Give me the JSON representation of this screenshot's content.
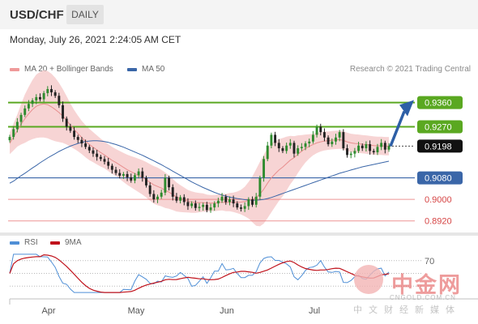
{
  "header": {
    "symbol": "USD/CHF",
    "timeframe": "DAILY"
  },
  "datetime": "Monday, July 26, 2021 2:24:05 AM CET",
  "legend": {
    "ma20": "MA 20 + Bollinger Bands",
    "ma50": "MA 50"
  },
  "copyright": "Research © 2021 Trading Central",
  "rsi_legend": {
    "rsi": "RSI",
    "ma9": "9MA"
  },
  "watermark": {
    "cn": "中金网",
    "url": "CNGOLD.COM.CN",
    "sub": "中文财经新媒体"
  },
  "colors": {
    "up": "#2e8b2e",
    "down": "#222222",
    "bollinger": "#f4c6c6",
    "ma20": "#e88f8f",
    "ma50": "#3a66a8",
    "resistance": "#5aa821",
    "support": "#3a66a8",
    "target": "#e97a7a",
    "rsi": "#4f8fd6",
    "rsi_ma": "#c0121b"
  },
  "chart_data": {
    "type": "candlestick",
    "xticks": [
      "Apr",
      "May",
      "Jun",
      "Jul"
    ],
    "ylim": [
      0.888,
      0.944
    ],
    "levels": [
      {
        "value": 0.936,
        "label": "0.9360",
        "kind": "resistance"
      },
      {
        "value": 0.927,
        "label": "0.9270",
        "kind": "resistance"
      },
      {
        "value": 0.9198,
        "label": "0.9198",
        "kind": "current"
      },
      {
        "value": 0.908,
        "label": "0.9080",
        "kind": "support"
      },
      {
        "value": 0.9,
        "label": "0.9000",
        "kind": "target"
      },
      {
        "value": 0.892,
        "label": "0.8920",
        "kind": "target"
      }
    ],
    "close": [
      0.9232,
      0.9261,
      0.9288,
      0.9314,
      0.9338,
      0.9355,
      0.9368,
      0.938,
      0.9372,
      0.9395,
      0.941,
      0.9398,
      0.9385,
      0.935,
      0.93,
      0.927,
      0.9255,
      0.9232,
      0.9221,
      0.9208,
      0.9195,
      0.9182,
      0.917,
      0.9158,
      0.915,
      0.914,
      0.9125,
      0.911,
      0.9098,
      0.9088,
      0.9094,
      0.9082,
      0.907,
      0.909,
      0.9104,
      0.908,
      0.9052,
      0.902,
      0.9,
      0.901,
      0.9025,
      0.908,
      0.9045,
      0.901,
      0.8995,
      0.9008,
      0.899,
      0.8975,
      0.8985,
      0.8968,
      0.8972,
      0.898,
      0.896,
      0.897,
      0.8985,
      0.8995,
      0.901,
      0.899,
      0.9,
      0.8985,
      0.897,
      0.8965,
      0.8975,
      0.9,
      0.898,
      0.901,
      0.908,
      0.915,
      0.92,
      0.924,
      0.921,
      0.919,
      0.918,
      0.92,
      0.921,
      0.917,
      0.919,
      0.9195,
      0.9208,
      0.9215,
      0.924,
      0.927,
      0.925,
      0.923,
      0.9205,
      0.9215,
      0.923,
      0.925,
      0.919,
      0.9165,
      0.917,
      0.918,
      0.92,
      0.919,
      0.9205,
      0.918,
      0.9175,
      0.9195,
      0.921,
      0.9185,
      0.9198
    ],
    "ma20": [
      0.9208,
      0.9232,
      0.9256,
      0.9279,
      0.93,
      0.9318,
      0.9334,
      0.9346,
      0.9352,
      0.9355,
      0.9352,
      0.9344,
      0.9334,
      0.9323,
      0.931,
      0.9294,
      0.9276,
      0.926,
      0.9245,
      0.923,
      0.9216,
      0.9204,
      0.9194,
      0.9184,
      0.9174,
      0.9165,
      0.9155,
      0.9145,
      0.9137,
      0.9128,
      0.9119,
      0.911,
      0.9103,
      0.9096,
      0.9089,
      0.9082,
      0.9073,
      0.9063,
      0.9054,
      0.9048,
      0.9042,
      0.9034,
      0.9027,
      0.9018,
      0.9009,
      0.9003,
      0.8998,
      0.8993,
      0.899,
      0.8988,
      0.8988,
      0.8988,
      0.8986,
      0.8986,
      0.8986,
      0.8988,
      0.899,
      0.8988,
      0.899,
      0.8989,
      0.8989,
      0.899,
      0.8992,
      0.8997,
      0.9,
      0.9007,
      0.902,
      0.9038,
      0.906,
      0.908,
      0.9095,
      0.9109,
      0.912,
      0.9133,
      0.9146,
      0.9155,
      0.9168,
      0.9179,
      0.9189,
      0.9197,
      0.9204,
      0.921,
      0.9214,
      0.9217,
      0.9218,
      0.922,
      0.9221,
      0.9222,
      0.9219,
      0.9214,
      0.921,
      0.9208,
      0.9207,
      0.9205,
      0.9204,
      0.9202,
      0.92,
      0.9199,
      0.9199,
      0.9198,
      0.9198
    ],
    "ma50": [
      0.906,
      0.9068,
      0.9078,
      0.9088,
      0.9097,
      0.9107,
      0.9117,
      0.9126,
      0.9136,
      0.9145,
      0.9154,
      0.9162,
      0.917,
      0.9178,
      0.9185,
      0.9192,
      0.9198,
      0.9203,
      0.9208,
      0.9212,
      0.9215,
      0.9217,
      0.9218,
      0.9218,
      0.9217,
      0.9215,
      0.9212,
      0.9208,
      0.9204,
      0.9199,
      0.9194,
      0.9188,
      0.9182,
      0.9176,
      0.917,
      0.9164,
      0.9157,
      0.915,
      0.9143,
      0.9136,
      0.9129,
      0.9121,
      0.9113,
      0.9105,
      0.9097,
      0.9089,
      0.9081,
      0.9073,
      0.9065,
      0.9058,
      0.9051,
      0.9044,
      0.9038,
      0.9032,
      0.9026,
      0.9021,
      0.9016,
      0.9012,
      0.9009,
      0.9006,
      0.9003,
      0.9001,
      0.8999,
      0.8998,
      0.8997,
      0.8997,
      0.8998,
      0.9,
      0.9003,
      0.9007,
      0.9012,
      0.9017,
      0.9022,
      0.9027,
      0.9032,
      0.9037,
      0.9042,
      0.9047,
      0.9052,
      0.9057,
      0.9062,
      0.9067,
      0.9072,
      0.9077,
      0.9082,
      0.9087,
      0.9092,
      0.9097,
      0.9101,
      0.9105,
      0.9109,
      0.9113,
      0.9117,
      0.9121,
      0.9124,
      0.9127,
      0.913,
      0.9133,
      0.9136,
      0.9139,
      0.9142
    ],
    "bb_width": [
      0.004,
      0.005,
      0.006,
      0.0075,
      0.009,
      0.01,
      0.011,
      0.0118,
      0.0122,
      0.0125,
      0.0125,
      0.0123,
      0.0118,
      0.011,
      0.01,
      0.009,
      0.008,
      0.0072,
      0.0066,
      0.0062,
      0.006,
      0.0058,
      0.0056,
      0.0054,
      0.0052,
      0.005,
      0.005,
      0.005,
      0.005,
      0.0052,
      0.0054,
      0.0056,
      0.0058,
      0.006,
      0.0062,
      0.0064,
      0.0066,
      0.0068,
      0.007,
      0.007,
      0.0068,
      0.0066,
      0.0062,
      0.0058,
      0.0054,
      0.005,
      0.0046,
      0.0042,
      0.004,
      0.0038,
      0.0036,
      0.0034,
      0.0032,
      0.003,
      0.003,
      0.003,
      0.0031,
      0.0032,
      0.0034,
      0.0036,
      0.004,
      0.0046,
      0.0055,
      0.0068,
      0.0085,
      0.0105,
      0.012,
      0.0128,
      0.013,
      0.0128,
      0.0122,
      0.0115,
      0.0108,
      0.01,
      0.009,
      0.008,
      0.007,
      0.006,
      0.0052,
      0.0045,
      0.004,
      0.0038,
      0.0036,
      0.0035,
      0.0034,
      0.0034,
      0.0034,
      0.0034,
      0.0034,
      0.0034,
      0.0034,
      0.0034,
      0.0034,
      0.0034,
      0.0034,
      0.0034,
      0.0034,
      0.0034,
      0.0034,
      0.0034,
      0.0034
    ],
    "rsi": {
      "level_label": "70",
      "levels": [
        70,
        50,
        30
      ],
      "ylim": [
        15,
        85
      ]
    }
  }
}
